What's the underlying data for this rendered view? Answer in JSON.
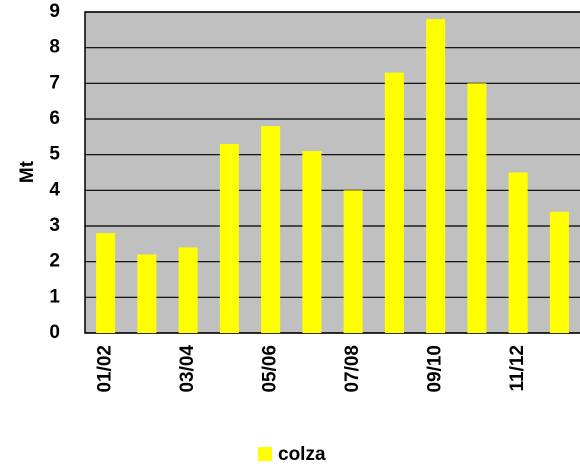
{
  "chart_data": {
    "type": "bar",
    "y_label": "Mt",
    "categories": [
      "01/02",
      null,
      "03/04",
      null,
      "05/06",
      null,
      "07/08",
      null,
      "09/10",
      null,
      "11/12",
      null
    ],
    "series": [
      {
        "name": "colza",
        "color": "#ffff00",
        "values": [
          2.8,
          2.2,
          2.4,
          5.3,
          5.8,
          5.1,
          4.0,
          7.3,
          8.8,
          7.0,
          4.5,
          3.4
        ]
      }
    ],
    "ylim": [
      0,
      9
    ],
    "yticks": [
      0,
      1,
      2,
      3,
      4,
      5,
      6,
      7,
      8,
      9
    ],
    "grid": true,
    "legend": "bottom"
  }
}
